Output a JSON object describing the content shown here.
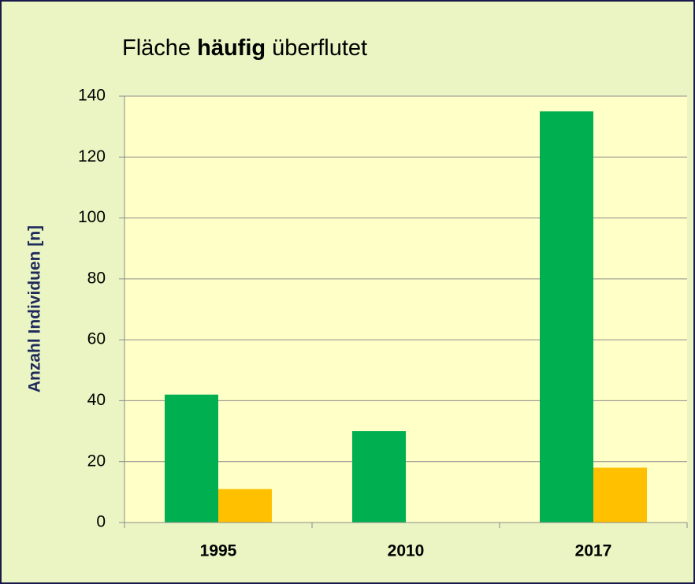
{
  "chart_data": {
    "type": "bar",
    "title": [
      "Fläche",
      "häufig",
      "überflutet"
    ],
    "y_label": "Anzahl Individuen [n]",
    "categories": [
      "1995",
      "2010",
      "2017"
    ],
    "series": [
      {
        "color": "#00b050",
        "values": [
          42,
          30,
          135
        ]
      },
      {
        "color": "#ffc000",
        "values": [
          11,
          null,
          18
        ]
      }
    ],
    "ylim": [
      0,
      140
    ],
    "yticks": [
      0,
      20,
      40,
      60,
      80,
      100,
      120,
      140
    ],
    "grid": true
  }
}
